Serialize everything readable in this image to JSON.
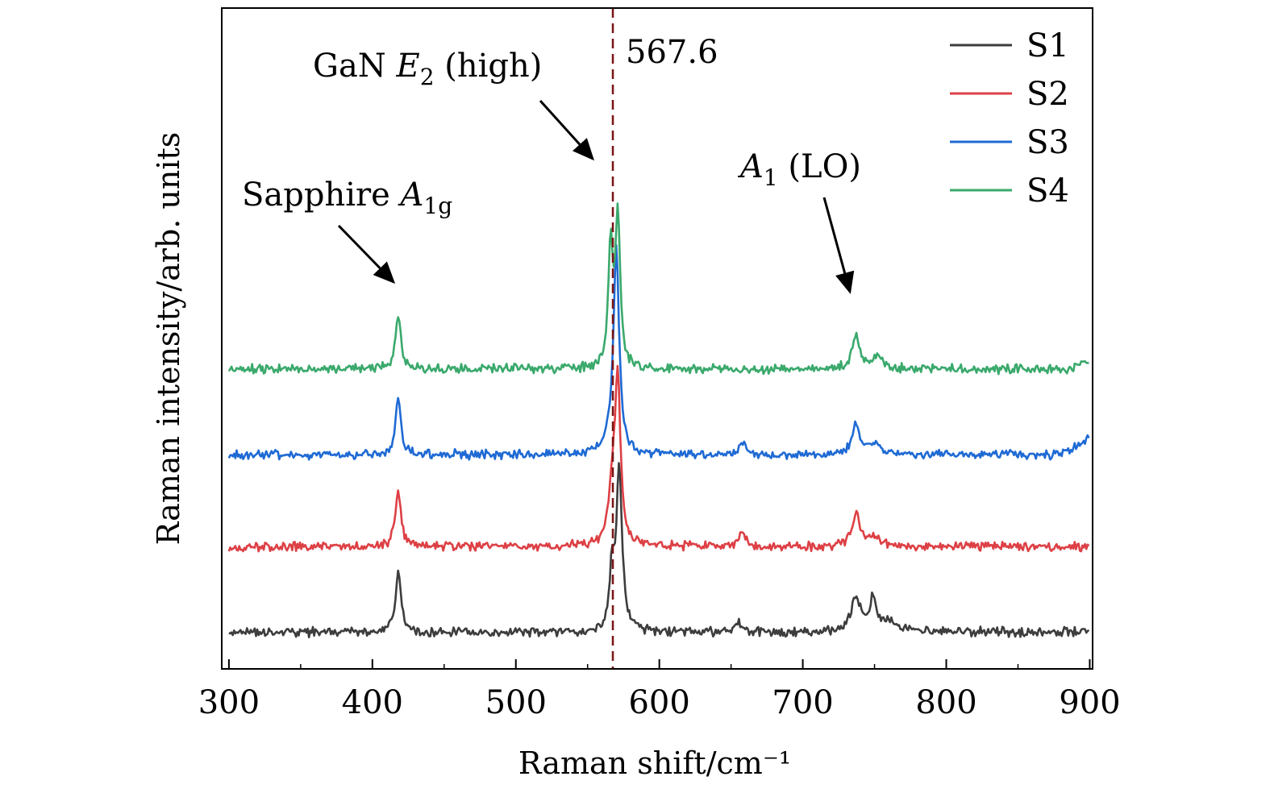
{
  "chart_data": {
    "type": "line",
    "title": "",
    "xlabel": "Raman shift/cm⁻¹",
    "ylabel": "Raman intensity/arb. units",
    "xlim": [
      295,
      902
    ],
    "ylim": [
      0,
      100
    ],
    "x_ticks": [
      300,
      400,
      500,
      600,
      700,
      800,
      900
    ],
    "x_minor_ticks": [
      350,
      450,
      550,
      650,
      750,
      850
    ],
    "y_tick_labels_visible": false,
    "grid": false,
    "legend_position": "top-right",
    "reference_line": {
      "x": 567.6,
      "label": "567.6",
      "color": "#7a1414",
      "style": "dashed"
    },
    "annotations": [
      {
        "name": "sapphire",
        "text": "Sapphire",
        "math": "A",
        "sub": "1g",
        "tail": "",
        "x": 418,
        "y": 55,
        "color": "#000000"
      },
      {
        "name": "gan-e2",
        "text": "GaN",
        "math": "E",
        "sub": "2",
        "tail": " (high)",
        "x": 565,
        "y": 80,
        "color": "#000000"
      },
      {
        "name": "a1-lo",
        "text": "",
        "math": "A",
        "sub": "1",
        "tail": " (LO)",
        "x": 738,
        "y": 55,
        "color": "#000000"
      }
    ],
    "series": [
      {
        "name": "S1",
        "color": "#3d3d3d",
        "baseline": 4,
        "peaks": [
          [
            418,
            10,
            2.2
          ],
          [
            567,
            9,
            1.8
          ],
          [
            572,
            27,
            2.4
          ],
          [
            655,
            1.5,
            3
          ],
          [
            737,
            5.5,
            4
          ],
          [
            749,
            5,
            2.5
          ],
          [
            760,
            1.5,
            10
          ]
        ],
        "noise": 0.9,
        "slope": 0.0
      },
      {
        "name": "S2",
        "color": "#dd4045",
        "baseline": 18,
        "peaks": [
          [
            418,
            9,
            2.3
          ],
          [
            567,
            8,
            3
          ],
          [
            571,
            27,
            2.3
          ],
          [
            658,
            2,
            3
          ],
          [
            737,
            5,
            3.5
          ],
          [
            750,
            1.5,
            5
          ]
        ],
        "noise": 0.9,
        "slope": 0.0
      },
      {
        "name": "S3",
        "color": "#1f6ad4",
        "baseline": 33,
        "peaks": [
          [
            418,
            9,
            2.2
          ],
          [
            566,
            2,
            5
          ],
          [
            570,
            33,
            2.3
          ],
          [
            658,
            2,
            3
          ],
          [
            737,
            5,
            3
          ],
          [
            749,
            1.5,
            6
          ]
        ],
        "noise": 0.9,
        "slope": 0.0,
        "rise": [
          870,
          3
        ]
      },
      {
        "name": "S4",
        "color": "#3aa96c",
        "baseline": 47,
        "peaks": [
          [
            418,
            9,
            2.2
          ],
          [
            566,
            20,
            1.8
          ],
          [
            571,
            25,
            2.0
          ],
          [
            737,
            5.5,
            3
          ],
          [
            752,
            2,
            4
          ]
        ],
        "noise": 0.9,
        "slope": 0.0,
        "rise": [
          880,
          1.5
        ]
      }
    ]
  },
  "legend": {
    "items": [
      {
        "label": "S1",
        "color": "#3d3d3d"
      },
      {
        "label": "S2",
        "color": "#dd4045"
      },
      {
        "label": "S3",
        "color": "#1f6ad4"
      },
      {
        "label": "S4",
        "color": "#3aa96c"
      }
    ]
  }
}
